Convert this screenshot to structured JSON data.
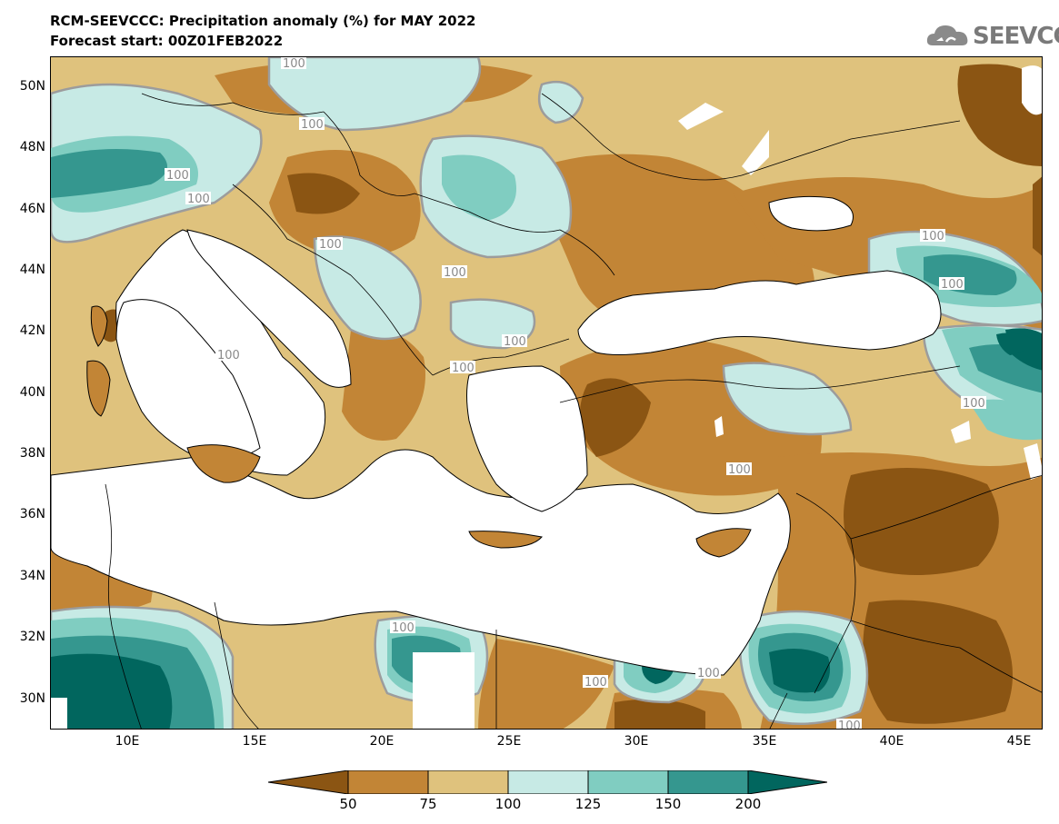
{
  "header": {
    "title": "RCM-SEEVCCC: Precipitation anomaly (%) for MAY 2022",
    "subtitle": "Forecast start: 00Z01FEB2022",
    "logo_text": "SEEVCCC"
  },
  "axes": {
    "lat_labels": [
      "50N",
      "48N",
      "46N",
      "44N",
      "42N",
      "40N",
      "38N",
      "36N",
      "34N",
      "32N",
      "30N"
    ],
    "lon_labels": [
      "10E",
      "15E",
      "20E",
      "25E",
      "30E",
      "35E",
      "40E",
      "45E"
    ]
  },
  "map_data": {
    "variable": "Precipitation anomaly",
    "unit": "%",
    "lon_range": [
      7,
      46
    ],
    "lat_range": [
      29,
      51
    ],
    "contour_label": "100",
    "colors": {
      "below_50": "#8b5513",
      "50_75": "#c28536",
      "75_100": "#dfc27d",
      "100_125": "#c7eae5",
      "125_150": "#80cdc1",
      "150_200": "#35978f",
      "above_200": "#01665e",
      "sea": "#ffffff"
    }
  },
  "colorbar": {
    "ticks": [
      "50",
      "75",
      "100",
      "125",
      "150",
      "200"
    ],
    "colors": [
      "#8b5513",
      "#c28536",
      "#dfc27d",
      "#c7eae5",
      "#80cdc1",
      "#35978f",
      "#01665e"
    ]
  }
}
